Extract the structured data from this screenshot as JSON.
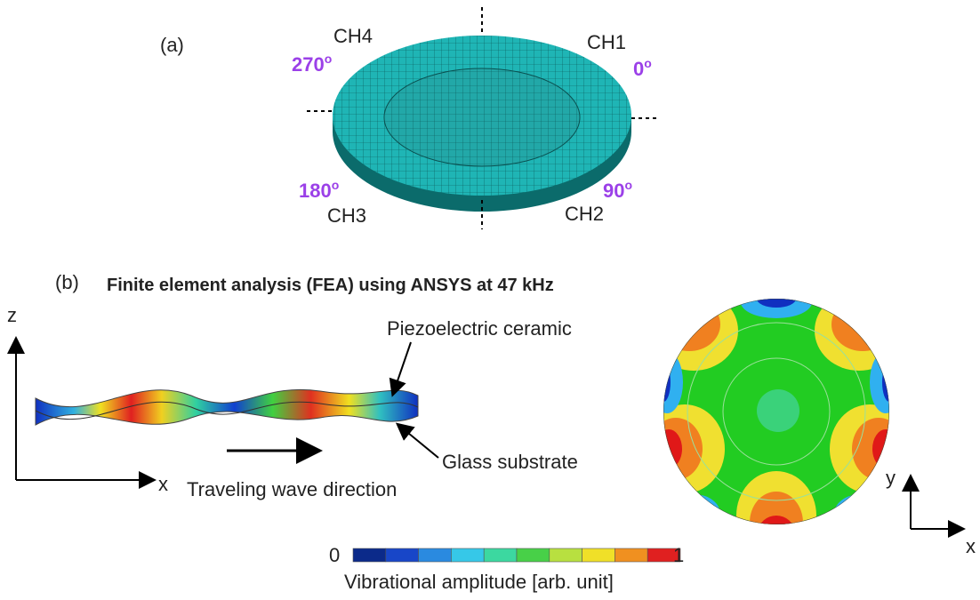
{
  "panel_a": {
    "label": "(a)",
    "channels": [
      "CH4",
      "CH1",
      "CH3",
      "CH2"
    ],
    "angles": [
      {
        "value": "270",
        "sup": "o"
      },
      {
        "value": "0",
        "sup": "o"
      },
      {
        "value": "180",
        "sup": "o"
      },
      {
        "value": "90",
        "sup": "o"
      }
    ]
  },
  "panel_b": {
    "label": "(b)",
    "title": "Finite element analysis (FEA) using ANSYS at 47 kHz",
    "side_view": {
      "axis_z": "z",
      "axis_x": "x",
      "ceramic": "Piezoelectric ceramic",
      "substrate": "Glass substrate",
      "direction": "Traveling wave direction"
    },
    "top_view": {
      "axis_y": "y",
      "axis_x": "x"
    },
    "colorbar": {
      "min": "0",
      "max": "1",
      "label": "Vibrational amplitude [arb. unit]"
    }
  }
}
